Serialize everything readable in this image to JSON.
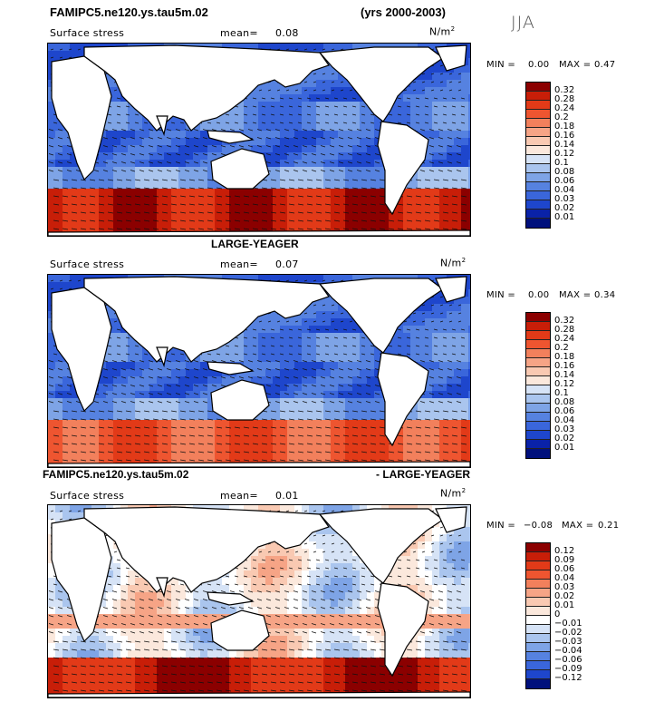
{
  "header": {
    "case_title": "FAMIPC5.ne120.ys.tau5m.02",
    "years": "(yrs 2000-2003)",
    "season": "JJA"
  },
  "panels": [
    {
      "title": "",
      "variable": "Surface stress",
      "mean_label": "mean=",
      "mean_value": "0.08",
      "units_base": "N/m",
      "units_exp": "2",
      "min_label": "MIN =",
      "min_value": "0.00",
      "max_label": "MAX =",
      "max_value": "0.47",
      "levels": [
        "0.32",
        "0.28",
        "0.24",
        "0.2",
        "0.18",
        "0.16",
        "0.14",
        "0.12",
        "0.1",
        "0.08",
        "0.06",
        "0.04",
        "0.03",
        "0.02",
        "0.01"
      ]
    },
    {
      "title": "LARGE-YEAGER",
      "variable": "Surface stress",
      "mean_label": "mean=",
      "mean_value": "0.07",
      "units_base": "N/m",
      "units_exp": "2",
      "min_label": "MIN =",
      "min_value": "0.00",
      "max_label": "MAX =",
      "max_value": "0.34",
      "levels": [
        "0.32",
        "0.28",
        "0.24",
        "0.2",
        "0.18",
        "0.16",
        "0.14",
        "0.12",
        "0.1",
        "0.08",
        "0.06",
        "0.04",
        "0.03",
        "0.02",
        "0.01"
      ]
    },
    {
      "title_left": "FAMIPC5.ne120.ys.tau5m.02",
      "title_right": "- LARGE-YEAGER",
      "variable": "Surface stress",
      "mean_label": "mean=",
      "mean_value": "0.01",
      "units_base": "N/m",
      "units_exp": "2",
      "min_label": "MIN =",
      "min_value": "−0.08",
      "max_label": "MAX =",
      "max_value": "0.21",
      "levels": [
        "0.12",
        "0.09",
        "0.06",
        "0.04",
        "0.03",
        "0.02",
        "0.01",
        "0",
        "−0.01",
        "−0.02",
        "−0.03",
        "−0.04",
        "−0.06",
        "−0.09",
        "−0.12"
      ]
    }
  ],
  "colors": {
    "full_scale": [
      "#8b0000",
      "#c81e08",
      "#e23a18",
      "#ee5530",
      "#f2805c",
      "#f6a486",
      "#f9c9b2",
      "#fbe8dc",
      "#d6e3f6",
      "#aac5ee",
      "#7ea4e6",
      "#5682e0",
      "#3a66db",
      "#1e46cc",
      "#0a22a8",
      "#00107c"
    ],
    "diff_scale": [
      "#8b0000",
      "#c81e08",
      "#e23a18",
      "#ee5530",
      "#f2805c",
      "#f6a486",
      "#f9c9b2",
      "#fbe8dc",
      "#ffffff",
      "#d6e3f6",
      "#aac5ee",
      "#7ea4e6",
      "#5682e0",
      "#3a66db",
      "#1e46cc",
      "#00107c"
    ]
  },
  "chart_data": [
    {
      "type": "heatmap",
      "title": "",
      "description_of_field": "surface wind stress magnitude with vector arrows",
      "colorbar_levels": [
        0.32,
        0.28,
        0.24,
        0.2,
        0.18,
        0.16,
        0.14,
        0.12,
        0.1,
        0.08,
        0.06,
        0.04,
        0.03,
        0.02,
        0.01
      ],
      "mean": 0.08,
      "min": 0.0,
      "max": 0.47
    },
    {
      "type": "heatmap",
      "title": "LARGE-YEAGER",
      "colorbar_levels": [
        0.32,
        0.28,
        0.24,
        0.2,
        0.18,
        0.16,
        0.14,
        0.12,
        0.1,
        0.08,
        0.06,
        0.04,
        0.03,
        0.02,
        0.01
      ],
      "mean": 0.07,
      "min": 0.0,
      "max": 0.34
    },
    {
      "type": "heatmap",
      "title": "FAMIPC5.ne120.ys.tau5m.02 - LARGE-YEAGER",
      "colorbar_levels": [
        0.12,
        0.09,
        0.06,
        0.04,
        0.03,
        0.02,
        0.01,
        0,
        -0.01,
        -0.02,
        -0.03,
        -0.04,
        -0.06,
        -0.09,
        -0.12
      ],
      "mean": 0.01,
      "min": -0.08,
      "max": 0.21
    }
  ]
}
